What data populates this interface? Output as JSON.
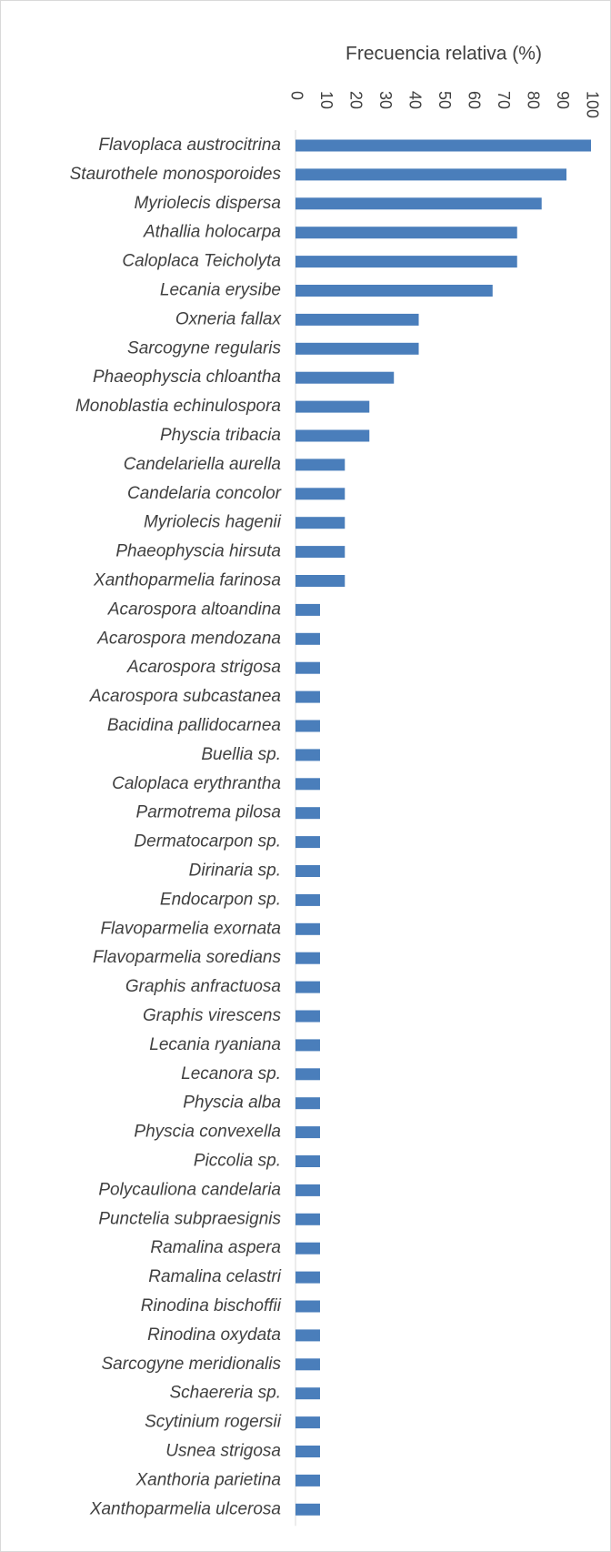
{
  "chart_data": {
    "type": "barh",
    "title": "Frecuencia relativa (%)",
    "color": "#4a7ebb",
    "categories": [
      "Flavoplaca austrocitrina",
      "Staurothele monosporoides",
      "Myriolecis dispersa",
      "Athallia holocarpa",
      "Caloplaca Teicholyta",
      "Lecania erysibe",
      "Oxneria fallax",
      "Sarcogyne regularis",
      "Phaeophyscia chloantha",
      "Monoblastia echinulospora",
      "Physcia tribacia",
      "Candelariella aurella",
      "Candelaria concolor",
      "Myriolecis hagenii",
      "Phaeophyscia hirsuta",
      "Xanthoparmelia farinosa",
      "Acarospora altoandina",
      "Acarospora mendozana",
      "Acarospora strigosa",
      "Acarospora subcastanea",
      "Bacidina pallidocarnea",
      "Buellia sp.",
      "Caloplaca erythrantha",
      "Parmotrema pilosa",
      "Dermatocarpon sp.",
      "Dirinaria sp.",
      "Endocarpon sp.",
      "Flavoparmelia exornata",
      "Flavoparmelia soredians",
      "Graphis anfractuosa",
      "Graphis virescens",
      "Lecania ryaniana",
      "Lecanora sp.",
      "Physcia alba",
      "Physcia convexella",
      "Piccolia sp.",
      "Polycauliona candelaria",
      "Punctelia subpraesignis",
      "Ramalina aspera",
      "Ramalina celastri",
      "Rinodina bischoffii",
      "Rinodina oxydata",
      "Sarcogyne meridionalis",
      "Schaereria sp.",
      "Scytinium rogersii",
      "Usnea strigosa",
      "Xanthoria parietina",
      "Xanthoparmelia ulcerosa"
    ],
    "values": [
      100,
      91.7,
      83.3,
      75,
      75,
      66.7,
      41.7,
      41.7,
      33.3,
      25,
      25,
      16.7,
      16.7,
      16.7,
      16.7,
      16.7,
      8.3,
      8.3,
      8.3,
      8.3,
      8.3,
      8.3,
      8.3,
      8.3,
      8.3,
      8.3,
      8.3,
      8.3,
      8.3,
      8.3,
      8.3,
      8.3,
      8.3,
      8.3,
      8.3,
      8.3,
      8.3,
      8.3,
      8.3,
      8.3,
      8.3,
      8.3,
      8.3,
      8.3,
      8.3,
      8.3,
      8.3,
      8.3
    ],
    "xlim": [
      0,
      100
    ],
    "xticks": [
      0,
      10,
      20,
      30,
      40,
      50,
      60,
      70,
      80,
      90,
      100
    ]
  }
}
